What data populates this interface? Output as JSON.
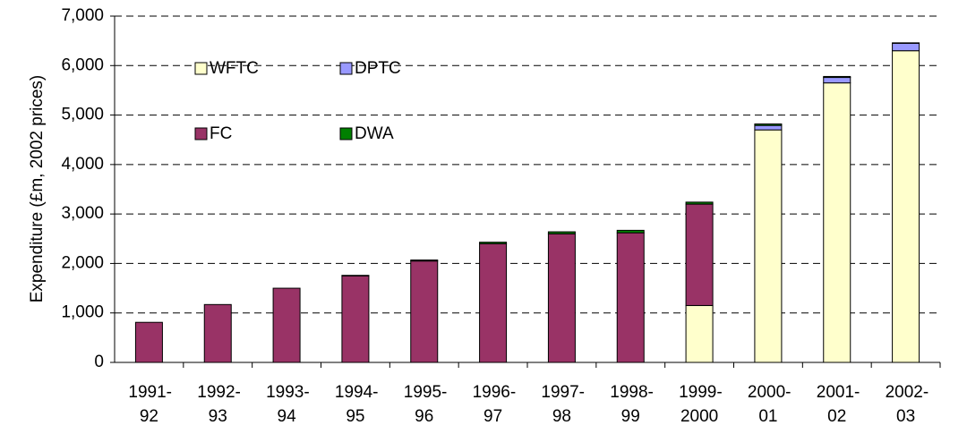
{
  "chart_data": {
    "type": "stacked-bar",
    "y_label": "Expenditure (£m, 2002 prices)",
    "categories": [
      "1991-92",
      "1992-93",
      "1993-94",
      "1994-95",
      "1995-96",
      "1996-97",
      "1997-98",
      "1998-99",
      "1999-2000",
      "2000-01",
      "2001-02",
      "2002-03"
    ],
    "series": [
      {
        "name": "WFTC",
        "color": "#ffffcc",
        "values": [
          0,
          0,
          0,
          0,
          0,
          0,
          0,
          0,
          1150,
          4700,
          5650,
          6300
        ]
      },
      {
        "name": "DPTC",
        "color": "#9999ff",
        "values": [
          0,
          0,
          0,
          0,
          0,
          0,
          0,
          0,
          0,
          90,
          110,
          150
        ]
      },
      {
        "name": "FC",
        "color": "#993366",
        "values": [
          810,
          1170,
          1500,
          1750,
          2050,
          2400,
          2600,
          2620,
          2050,
          0,
          0,
          0
        ]
      },
      {
        "name": "DWA",
        "color": "#008000",
        "values": [
          0,
          0,
          0,
          10,
          20,
          30,
          40,
          50,
          40,
          30,
          20,
          10
        ]
      }
    ],
    "ylim": [
      0,
      7000
    ],
    "yticks": [
      0,
      {
        "value": 1000,
        "label": "1,000"
      },
      {
        "value": 2000,
        "label": "2,000"
      },
      {
        "value": 3000,
        "label": "3,000"
      },
      {
        "value": 4000,
        "label": "4,000"
      },
      {
        "value": 5000,
        "label": "5,000"
      },
      {
        "value": 6000,
        "label": "6,000"
      },
      {
        "value": 7000,
        "label": "7,000"
      }
    ],
    "grid": true
  }
}
